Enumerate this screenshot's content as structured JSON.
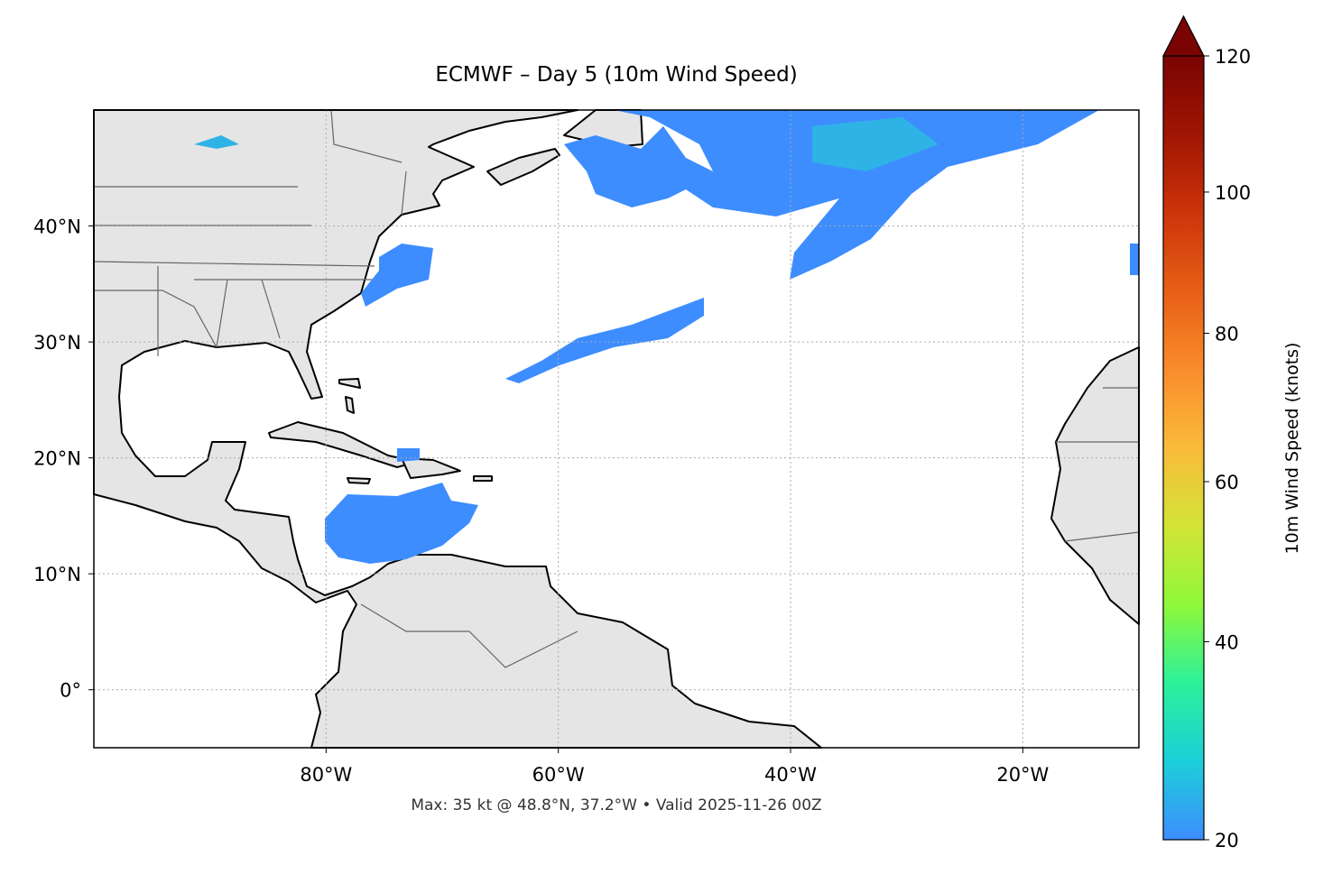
{
  "title": "ECMWF – Day 5 (10m Wind Speed)",
  "footer": "Max: 35 kt @ 48.8°N, 37.2°W • Valid 2025-11-26 00Z",
  "map": {
    "lon_range": [
      -100,
      -10
    ],
    "lat_range": [
      -5,
      50
    ],
    "lon_ticks": [
      {
        "value": -80,
        "label": "80°W"
      },
      {
        "value": -60,
        "label": "60°W"
      },
      {
        "value": -40,
        "label": "40°W"
      },
      {
        "value": -20,
        "label": "20°W"
      }
    ],
    "lat_ticks": [
      {
        "value": 40,
        "label": "40°N"
      },
      {
        "value": 30,
        "label": "30°N"
      },
      {
        "value": 20,
        "label": "20°N"
      },
      {
        "value": 10,
        "label": "10°N"
      },
      {
        "value": 0,
        "label": "0°"
      }
    ],
    "land_color": "#e5e5e5",
    "coast_color": "#000000",
    "border_color": "#666666",
    "grid": "dotted",
    "max_wind": {
      "value_kt": 35,
      "lat": 48.8,
      "lon": -37.2
    }
  },
  "colorbar": {
    "label": "10m Wind Speed (knots)",
    "min": 20,
    "max": 120,
    "extend": "max",
    "ticks": [
      {
        "value": 20,
        "label": "20"
      },
      {
        "value": 40,
        "label": "40"
      },
      {
        "value": 60,
        "label": "60"
      },
      {
        "value": 80,
        "label": "80"
      },
      {
        "value": 100,
        "label": "100"
      },
      {
        "value": 120,
        "label": "120"
      }
    ],
    "colormap": [
      "#3d8dff",
      "#1ccfd8",
      "#2cf19a",
      "#8ff83a",
      "#d3e436",
      "#f9bb3a",
      "#fa8c2c",
      "#e75f16",
      "#cc340a",
      "#a01503",
      "#7a0403"
    ]
  }
}
